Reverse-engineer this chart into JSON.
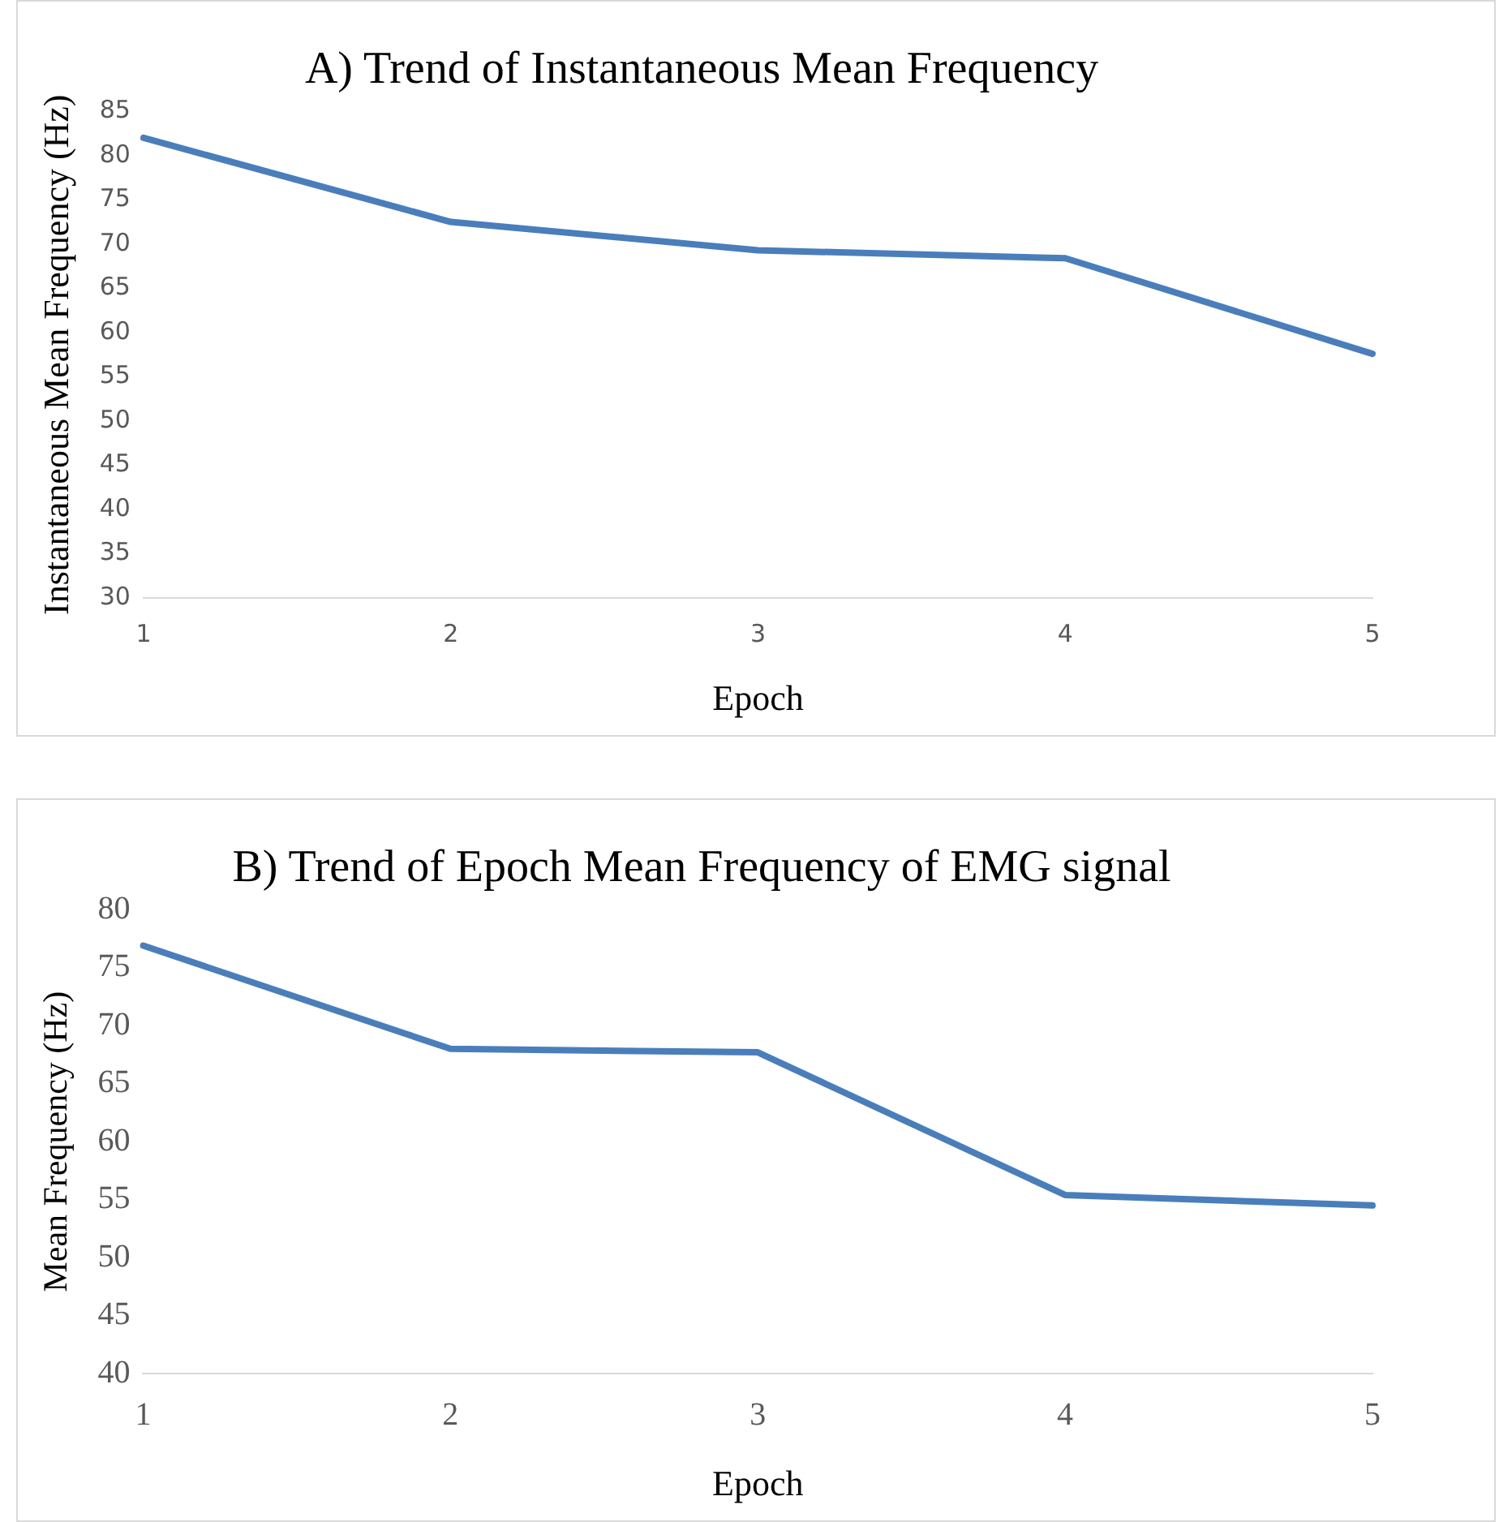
{
  "chart_data": [
    {
      "type": "line",
      "title": "A) Trend of Instantaneous Mean Frequency",
      "xlabel": "Epoch",
      "ylabel": "Instantaneous Mean Frequency (Hz)",
      "categories": [
        "1",
        "2",
        "3",
        "4",
        "5"
      ],
      "values": [
        82,
        72.5,
        69.3,
        68.4,
        57.6
      ],
      "color": "#4a7ebb",
      "ylim": [
        30,
        85
      ],
      "yticks": [
        30,
        35,
        40,
        45,
        50,
        55,
        60,
        65,
        70,
        75,
        80,
        85
      ],
      "marker": "none"
    },
    {
      "type": "line",
      "title": "B) Trend of Epoch Mean Frequency of EMG signal",
      "xlabel": "Epoch",
      "ylabel": "Mean Frequency (Hz)",
      "categories": [
        "1",
        "2",
        "3",
        "4",
        "5"
      ],
      "values": [
        76.9,
        68,
        67.7,
        55.4,
        54.5
      ],
      "color": "#4a7ebb",
      "ylim": [
        40,
        80
      ],
      "yticks": [
        40,
        45,
        50,
        55,
        60,
        65,
        70,
        75,
        80
      ],
      "marker": "none"
    }
  ]
}
